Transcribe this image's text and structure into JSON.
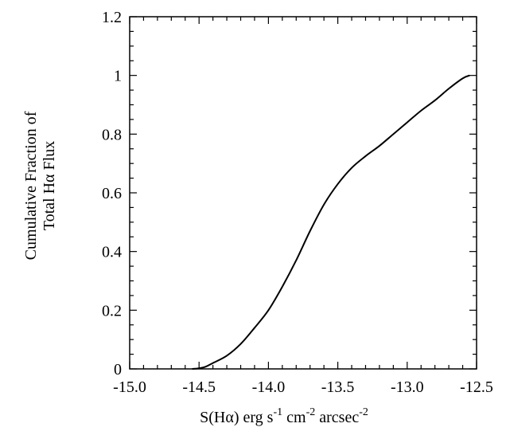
{
  "chart_data": {
    "type": "line",
    "xlabel": {
      "parts": [
        "S(H",
        "α",
        ") erg s",
        "-1",
        " cm",
        "-2",
        " arcsec",
        "-2"
      ]
    },
    "ylabel": {
      "line1": "Cumulative Fraction of",
      "line2": "Total Hα Flux"
    },
    "xlim": [
      -15.0,
      -12.5
    ],
    "ylim": [
      0,
      1.2
    ],
    "x_ticks": [
      "-15.0",
      "-14.5",
      "-14.0",
      "-13.5",
      "-13.0",
      "-12.5"
    ],
    "y_ticks": [
      "0",
      "0.2",
      "0.4",
      "0.6",
      "0.8",
      "1",
      "1.2"
    ],
    "x_tick_values": [
      -15.0,
      -14.5,
      -14.0,
      -13.5,
      -13.0,
      -12.5
    ],
    "y_tick_values": [
      0,
      0.2,
      0.4,
      0.6,
      0.8,
      1.0,
      1.2
    ],
    "grid": false,
    "series": [
      {
        "color": "#000000",
        "x": [
          -14.55,
          -14.5,
          -14.45,
          -14.4,
          -14.3,
          -14.2,
          -14.1,
          -14.0,
          -13.9,
          -13.8,
          -13.7,
          -13.6,
          -13.5,
          -13.4,
          -13.3,
          -13.2,
          -13.1,
          -13.0,
          -12.9,
          -12.8,
          -12.7,
          -12.6,
          -12.55
        ],
        "y": [
          0.0,
          0.002,
          0.008,
          0.02,
          0.045,
          0.085,
          0.14,
          0.2,
          0.28,
          0.37,
          0.47,
          0.56,
          0.63,
          0.685,
          0.725,
          0.76,
          0.8,
          0.84,
          0.88,
          0.915,
          0.955,
          0.99,
          1.0
        ]
      }
    ]
  }
}
